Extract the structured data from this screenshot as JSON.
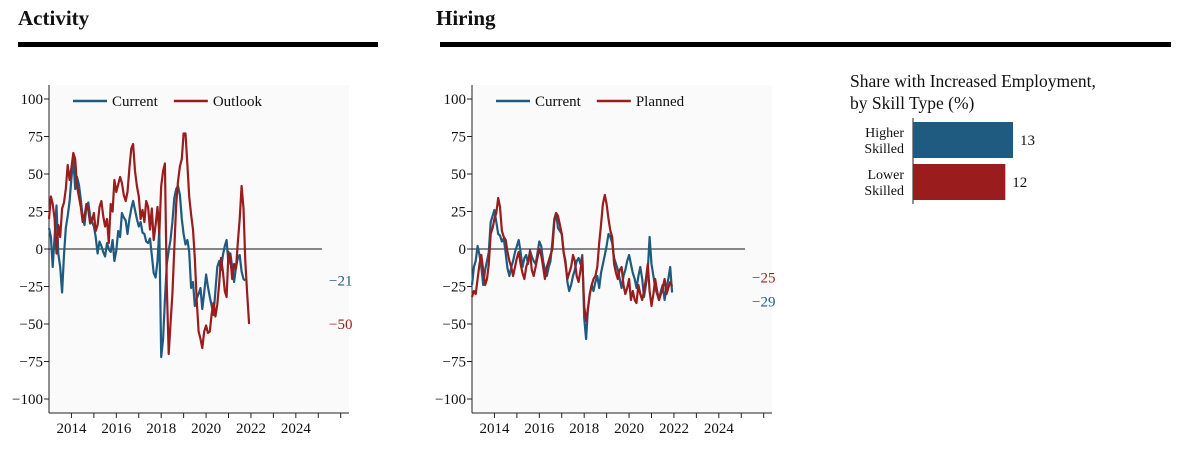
{
  "panels": {
    "activity_title": "Activity",
    "hiring_title": "Hiring",
    "bar_title_line1": "Share with Increased Employment,",
    "bar_title_line2": "by Skill Type (%)"
  },
  "colors": {
    "current": "#1f5b80",
    "outlook": "#9b1c1c",
    "planned": "#9b1c1c"
  },
  "chart_data": [
    {
      "type": "line",
      "title": "Activity",
      "xlabel": "",
      "ylabel": "",
      "ylim": [
        -100,
        100
      ],
      "yticks": [
        "100",
        "75",
        "50",
        "25",
        "0",
        "−25",
        "−50",
        "−75",
        "−100"
      ],
      "xticks": [
        "2014",
        "2016",
        "2018",
        "2020",
        "2022",
        "2024"
      ],
      "x_start": "2013-01",
      "x_end": "2025-03",
      "frequency": "monthly",
      "legend_position": "top-left",
      "series": [
        {
          "name": "Current",
          "color": "#1f5b80",
          "end_label": "−21",
          "values": [
            14,
            8,
            -12,
            8,
            29,
            -3,
            -12,
            -29,
            -4,
            14,
            22,
            32,
            47,
            60,
            40,
            48,
            43,
            33,
            21,
            16,
            28,
            31,
            22,
            18,
            15,
            8,
            -3,
            5,
            2,
            -2,
            -5,
            4,
            0,
            -2,
            6,
            -8,
            -1,
            12,
            8,
            24,
            21,
            19,
            10,
            20,
            27,
            32,
            26,
            20,
            15,
            18,
            11,
            10,
            5,
            4,
            7,
            -4,
            -16,
            -19,
            -8,
            13,
            -72,
            -60,
            -34,
            -10,
            -1,
            6,
            18,
            34,
            40,
            42,
            36,
            20,
            10,
            3,
            6,
            -2,
            -26,
            -22,
            -38,
            -33,
            -30,
            -26,
            -40,
            -29,
            -17,
            -25,
            -32,
            -38,
            -44,
            -28,
            -12,
            -8,
            -14,
            -4,
            2,
            6,
            -10,
            -3,
            -12,
            -22,
            -12,
            -6,
            -4,
            -15,
            -20,
            -21
          ]
        },
        {
          "name": "Outlook",
          "color": "#9b1c1c",
          "end_label": "−50",
          "values": [
            20,
            35,
            30,
            20,
            -3,
            16,
            8,
            27,
            31,
            40,
            56,
            46,
            54,
            64,
            60,
            42,
            35,
            28,
            18,
            22,
            30,
            26,
            17,
            19,
            24,
            12,
            16,
            28,
            32,
            22,
            15,
            20,
            4,
            30,
            25,
            46,
            38,
            43,
            48,
            44,
            36,
            32,
            38,
            54,
            67,
            70,
            52,
            42,
            35,
            20,
            26,
            18,
            32,
            28,
            13,
            27,
            6,
            16,
            28,
            10,
            42,
            52,
            57,
            -25,
            -70,
            -50,
            -30,
            0,
            30,
            45,
            55,
            60,
            77,
            77,
            56,
            35,
            23,
            13,
            -6,
            -34,
            -55,
            -60,
            -66,
            -55,
            -51,
            -56,
            -55,
            -43,
            -36,
            -45,
            -37,
            -23,
            -6,
            -15,
            -28,
            -32,
            -2,
            -6,
            -20,
            -10,
            -13,
            5,
            20,
            42,
            27,
            -8,
            -30,
            -50
          ]
        }
      ]
    },
    {
      "type": "line",
      "title": "Hiring",
      "xlabel": "",
      "ylabel": "",
      "ylim": [
        -100,
        100
      ],
      "yticks": [
        "100",
        "75",
        "50",
        "25",
        "0",
        "−25",
        "−50",
        "−75",
        "−100"
      ],
      "xticks": [
        "2014",
        "2016",
        "2018",
        "2020",
        "2022",
        "2024"
      ],
      "x_start": "2013-01",
      "x_end": "2025-03",
      "frequency": "monthly",
      "legend_position": "top-left",
      "series": [
        {
          "name": "Current",
          "color": "#1f5b80",
          "end_label": "−29",
          "values": [
            -24,
            -12,
            -8,
            2,
            -4,
            -12,
            -24,
            -14,
            -8,
            -2,
            18,
            22,
            26,
            18,
            10,
            9,
            5,
            7,
            -3,
            -13,
            -18,
            -12,
            -8,
            -2,
            2,
            6,
            -2,
            -12,
            -6,
            -4,
            -10,
            -1,
            -5,
            -8,
            -10,
            -3,
            5,
            2,
            -8,
            -14,
            -18,
            -12,
            -8,
            5,
            20,
            24,
            14,
            12,
            10,
            -2,
            -8,
            -22,
            -28,
            -24,
            -18,
            -14,
            -8,
            -6,
            -10,
            -4,
            -46,
            -60,
            -40,
            -30,
            -24,
            -28,
            -22,
            -18,
            -26,
            -16,
            -10,
            -4,
            2,
            10,
            8,
            4,
            -6,
            -10,
            -14,
            -20,
            -26,
            -18,
            -14,
            -8,
            -4,
            -10,
            -16,
            -20,
            -26,
            -18,
            -12,
            -20,
            -32,
            -24,
            -14,
            8,
            -10,
            -18,
            -26,
            -30,
            -34,
            -28,
            -24,
            -34,
            -26,
            -20,
            -12,
            -29
          ]
        },
        {
          "name": "Planned",
          "color": "#9b1c1c",
          "end_label": "−25",
          "values": [
            -32,
            -28,
            -30,
            -20,
            -10,
            -4,
            -14,
            -24,
            -20,
            -10,
            10,
            14,
            20,
            24,
            34,
            28,
            12,
            8,
            6,
            -2,
            -8,
            -12,
            -18,
            -12,
            -6,
            -2,
            -10,
            -16,
            -20,
            -12,
            -8,
            -2,
            -14,
            -18,
            -12,
            -6,
            0,
            -4,
            -12,
            -20,
            -12,
            -8,
            -4,
            0,
            18,
            24,
            22,
            16,
            10,
            -2,
            -10,
            -20,
            -16,
            -12,
            -4,
            -8,
            -18,
            -22,
            -14,
            -6,
            -38,
            -48,
            -40,
            -30,
            -24,
            -20,
            -18,
            -12,
            4,
            16,
            30,
            36,
            30,
            20,
            12,
            8,
            -10,
            -16,
            -20,
            -14,
            -12,
            -24,
            -30,
            -26,
            -20,
            -34,
            -28,
            -34,
            -36,
            -24,
            -30,
            -34,
            -28,
            -20,
            -10,
            -28,
            -38,
            -30,
            -20,
            -28,
            -34,
            -30,
            -26,
            -20,
            -30,
            -26,
            -22,
            -25
          ]
        }
      ]
    },
    {
      "type": "bar",
      "title": "Share with Increased Employment, by Skill Type (%)",
      "orientation": "horizontal",
      "categories": [
        "Higher Skilled",
        "Lower Skilled"
      ],
      "category_lines": [
        [
          "Higher",
          "Skilled"
        ],
        [
          "Lower",
          "Skilled"
        ]
      ],
      "values": [
        13,
        12
      ],
      "value_labels": [
        "13",
        "12"
      ],
      "colors": [
        "#1f5b80",
        "#9b1c1c"
      ],
      "xlim": [
        0,
        13
      ]
    }
  ]
}
